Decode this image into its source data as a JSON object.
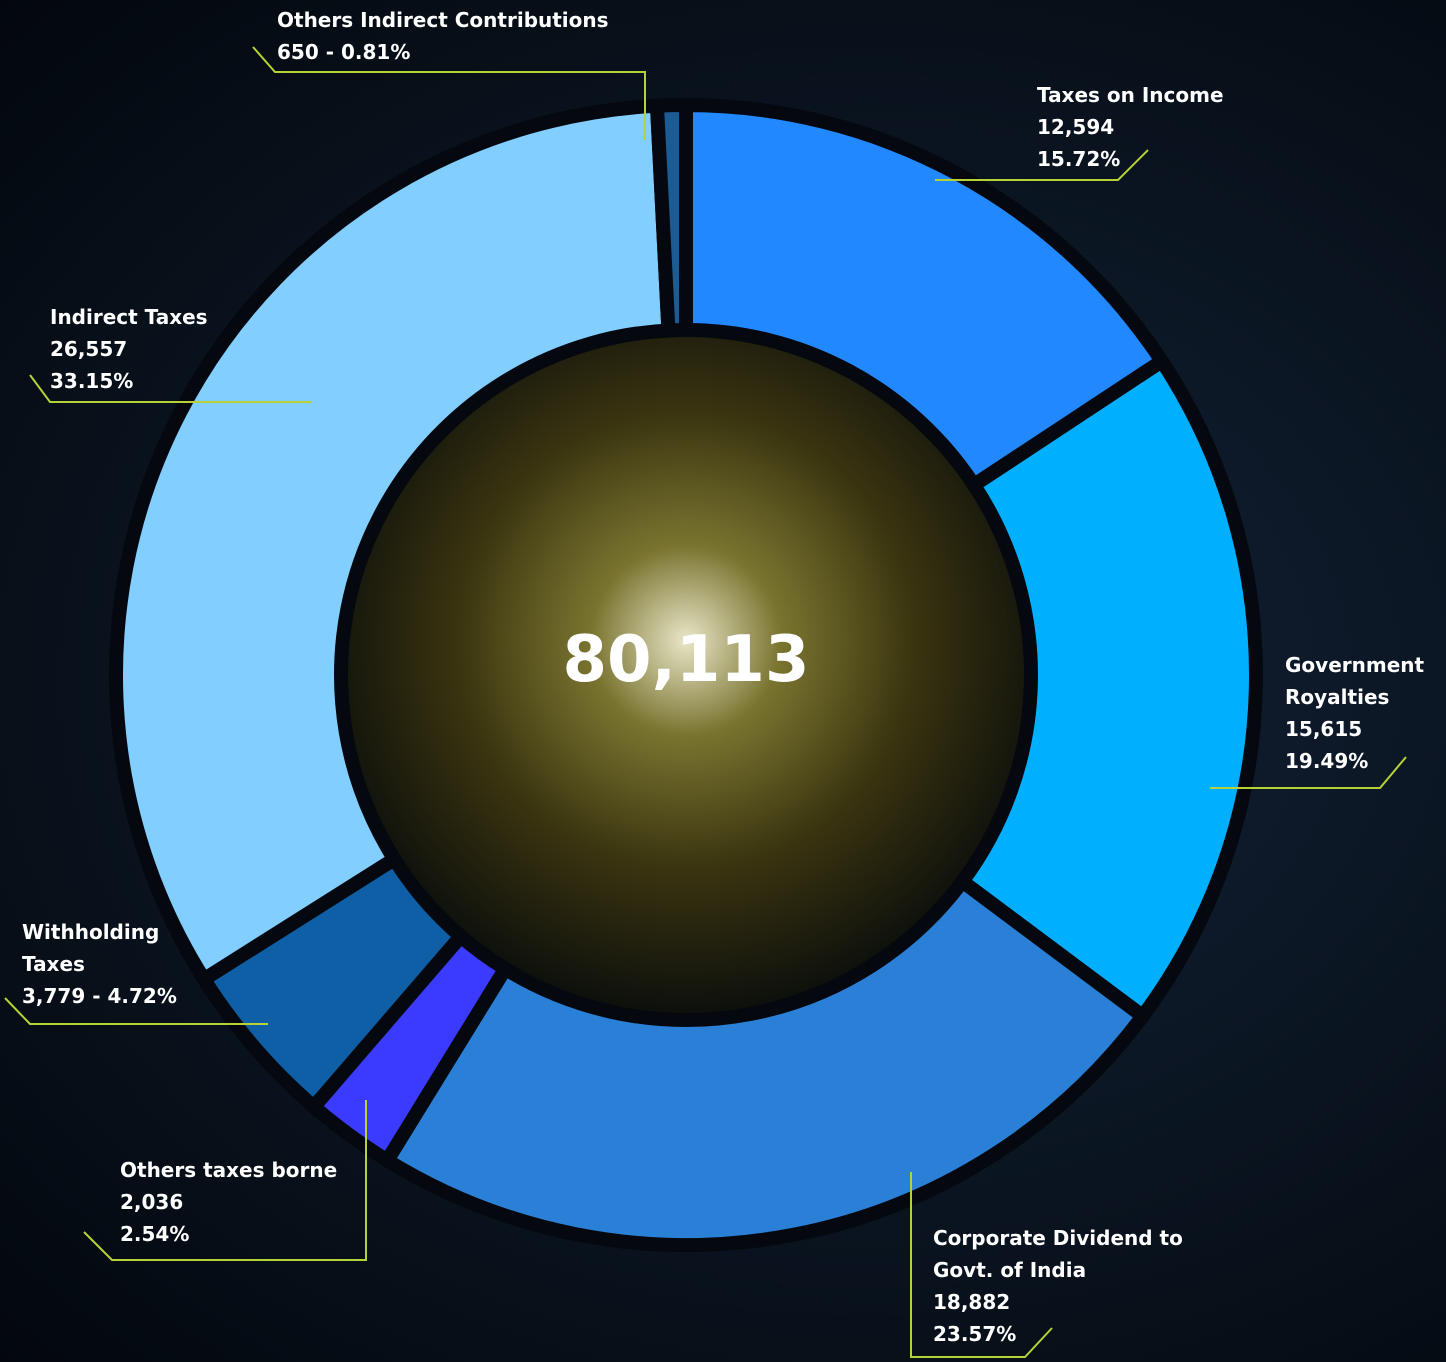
{
  "chart_data": {
    "type": "donut",
    "center_label": "80,113",
    "categories": [
      "Taxes on Income",
      "Government Royalties",
      "Corporate Dividend to Govt. of India",
      "Others taxes borne",
      "Withholding Taxes",
      "Indirect Taxes",
      "Others Indirect Contributions"
    ],
    "values": [
      12594,
      15615,
      18882,
      2036,
      3779,
      26557,
      650
    ],
    "value_labels": [
      "12,594",
      "15,615",
      "18,882",
      "2,036",
      "3,779",
      "26,557",
      "650"
    ],
    "percent_labels": [
      "15.72%",
      "19.49%",
      "23.57%",
      "2.54%",
      "4.72%",
      "33.15%",
      "0.81%"
    ],
    "separator": " - ",
    "colors": [
      "#2288ff",
      "#00b0ff",
      "#2a80d6",
      "#3b3bff",
      "#0f5fa6",
      "#82cfff",
      "#1b5c94"
    ]
  }
}
